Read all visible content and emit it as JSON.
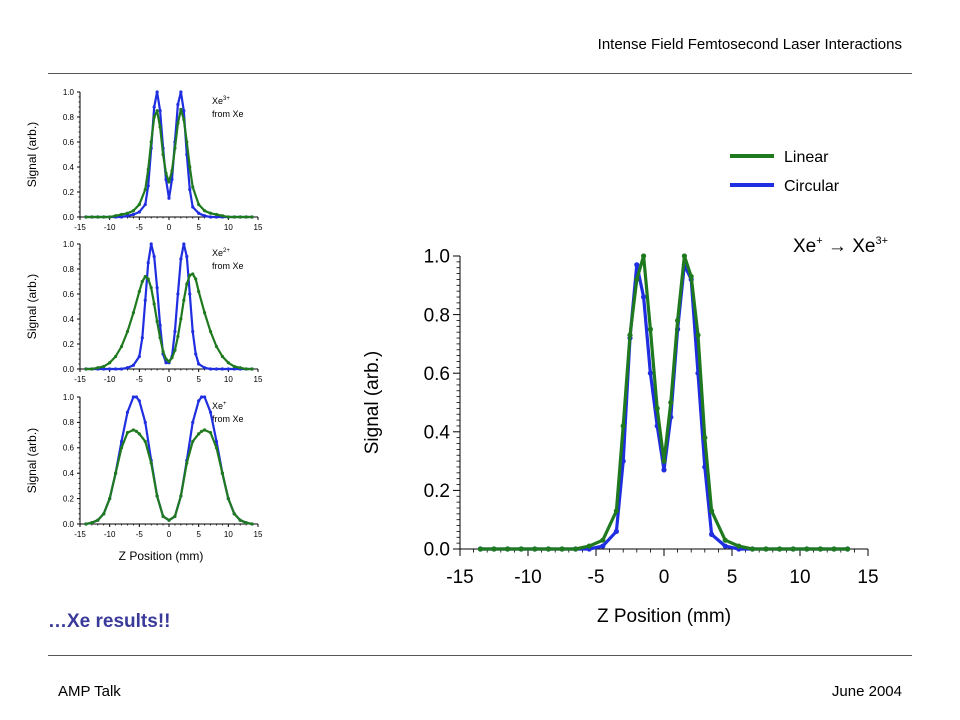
{
  "header": {
    "title": "Intense Field Femtosecond Laser Interactions"
  },
  "footer": {
    "left": "AMP Talk",
    "right": "June 2004"
  },
  "tagline": "…Xe results!!",
  "colors": {
    "linear": "#1f7a1f",
    "circular": "#1f2ee0"
  },
  "chart_data": [
    {
      "id": "main",
      "type": "line",
      "title_base": "Xe",
      "title_sup1": "+",
      "title_arrow": " → Xe",
      "title_sup2": "3+",
      "xlabel": "Z Position (mm)",
      "ylabel": "Signal (arb.)",
      "xlim": [
        -15,
        15
      ],
      "ylim": [
        0,
        1.0
      ],
      "xticks": [
        -15,
        -10,
        -5,
        0,
        5,
        10,
        15
      ],
      "yticks": [
        "0.0",
        "0.2",
        "0.4",
        "0.6",
        "0.8",
        "1.0"
      ],
      "legend": {
        "placement": "top-right",
        "entries": [
          "Linear",
          "Circular"
        ]
      },
      "x": [
        -13.5,
        -12.5,
        -11.5,
        -10.5,
        -9.5,
        -8.5,
        -7.5,
        -6.5,
        -5.5,
        -4.5,
        -3.5,
        -3,
        -2.5,
        -2,
        -1.5,
        -1,
        -0.5,
        0,
        0.5,
        1,
        1.5,
        2,
        2.5,
        3,
        3.5,
        4.5,
        5.5,
        6.5,
        7.5,
        8.5,
        9.5,
        10.5,
        11.5,
        12.5,
        13.5
      ],
      "series": [
        {
          "name": "Circular",
          "values": [
            0,
            0,
            0,
            0,
            0,
            0,
            0,
            0,
            0,
            0.01,
            0.06,
            0.3,
            0.72,
            0.97,
            0.86,
            0.6,
            0.42,
            0.27,
            0.45,
            0.75,
            0.97,
            0.92,
            0.6,
            0.28,
            0.05,
            0.01,
            0,
            0,
            0,
            0,
            0,
            0,
            0,
            0,
            0
          ]
        },
        {
          "name": "Linear",
          "values": [
            0,
            0,
            0,
            0,
            0,
            0,
            0,
            0,
            0.01,
            0.03,
            0.13,
            0.42,
            0.73,
            0.92,
            1.0,
            0.75,
            0.48,
            0.3,
            0.5,
            0.78,
            1.0,
            0.93,
            0.73,
            0.38,
            0.13,
            0.03,
            0.01,
            0,
            0,
            0,
            0,
            0,
            0,
            0,
            0
          ]
        }
      ]
    },
    {
      "id": "small1",
      "type": "line",
      "annotation_base": "Xe",
      "annotation_sup": "3+",
      "annotation_line2": "from Xe",
      "ylabel": "Signal (arb.)",
      "xlim": [
        -15,
        15
      ],
      "ylim": [
        0,
        1.0
      ],
      "xticks": [
        -15,
        -10,
        -5,
        0,
        5,
        10,
        15
      ],
      "yticks": [
        "0.0",
        "0.2",
        "0.4",
        "0.6",
        "0.8",
        "1.0"
      ],
      "x": [
        -14,
        -13,
        -12,
        -11,
        -10,
        -9,
        -8,
        -7,
        -6,
        -5,
        -4,
        -3.5,
        -3,
        -2.5,
        -2,
        -1.5,
        -1,
        -0.5,
        0,
        0.5,
        1,
        1.5,
        2,
        2.5,
        3,
        3.5,
        4,
        5,
        6,
        7,
        8,
        9,
        10,
        11,
        12,
        13,
        14
      ],
      "series": [
        {
          "name": "Circular",
          "values": [
            0,
            0,
            0,
            0,
            0,
            0,
            0,
            0.01,
            0.02,
            0.04,
            0.1,
            0.25,
            0.55,
            0.88,
            1.0,
            0.85,
            0.55,
            0.3,
            0.15,
            0.3,
            0.6,
            0.9,
            1.0,
            0.85,
            0.5,
            0.22,
            0.08,
            0.03,
            0.01,
            0,
            0,
            0,
            0,
            0,
            0,
            0,
            0
          ]
        },
        {
          "name": "Linear",
          "values": [
            0,
            0,
            0,
            0,
            0,
            0.01,
            0.02,
            0.03,
            0.05,
            0.1,
            0.22,
            0.38,
            0.6,
            0.8,
            0.85,
            0.72,
            0.5,
            0.35,
            0.28,
            0.37,
            0.55,
            0.75,
            0.86,
            0.78,
            0.6,
            0.4,
            0.24,
            0.1,
            0.05,
            0.03,
            0.02,
            0.01,
            0,
            0,
            0,
            0,
            0
          ]
        }
      ]
    },
    {
      "id": "small2",
      "type": "line",
      "annotation_base": "Xe",
      "annotation_sup": "2+",
      "annotation_line2": "from Xe",
      "ylabel": "Signal (arb.)",
      "xlim": [
        -15,
        15
      ],
      "ylim": [
        0,
        1.0
      ],
      "xticks": [
        -15,
        -10,
        -5,
        0,
        5,
        10,
        15
      ],
      "yticks": [
        "0.0",
        "0.2",
        "0.4",
        "0.6",
        "0.8",
        "1.0"
      ],
      "x": [
        -14,
        -13,
        -12,
        -11,
        -10,
        -9,
        -8,
        -7,
        -6,
        -5,
        -4.5,
        -4,
        -3.5,
        -3,
        -2.5,
        -2,
        -1.5,
        -1,
        -0.5,
        0,
        0.5,
        1,
        1.5,
        2,
        2.5,
        3,
        3.5,
        4,
        4.5,
        5,
        6,
        7,
        8,
        9,
        10,
        11,
        12,
        13,
        14
      ],
      "series": [
        {
          "name": "Circular",
          "values": [
            0,
            0,
            0,
            0,
            0,
            0,
            0,
            0.01,
            0.03,
            0.1,
            0.25,
            0.55,
            0.85,
            1.0,
            0.9,
            0.65,
            0.35,
            0.12,
            0.05,
            0.05,
            0.1,
            0.3,
            0.6,
            0.88,
            1.0,
            0.9,
            0.6,
            0.3,
            0.12,
            0.04,
            0.01,
            0,
            0,
            0,
            0,
            0,
            0,
            0,
            0
          ]
        },
        {
          "name": "Linear",
          "values": [
            0,
            0,
            0.01,
            0.02,
            0.05,
            0.1,
            0.18,
            0.3,
            0.45,
            0.62,
            0.7,
            0.74,
            0.72,
            0.65,
            0.52,
            0.38,
            0.25,
            0.14,
            0.08,
            0.06,
            0.09,
            0.15,
            0.26,
            0.4,
            0.55,
            0.68,
            0.75,
            0.76,
            0.72,
            0.62,
            0.45,
            0.3,
            0.18,
            0.1,
            0.05,
            0.02,
            0.01,
            0,
            0
          ]
        }
      ]
    },
    {
      "id": "small3",
      "type": "line",
      "annotation_base": "Xe",
      "annotation_sup": "+",
      "annotation_line2": "from Xe",
      "xlabel": "Z Position (mm)",
      "ylabel": "Signal (arb.)",
      "xlim": [
        -15,
        15
      ],
      "ylim": [
        0,
        1.0
      ],
      "xticks": [
        -15,
        -10,
        -5,
        0,
        5,
        10,
        15
      ],
      "yticks": [
        "0.0",
        "0.2",
        "0.4",
        "0.6",
        "0.8",
        "1.0"
      ],
      "x": [
        -14,
        -13,
        -12,
        -11,
        -10,
        -9,
        -8,
        -7,
        -6,
        -5.5,
        -5,
        -4,
        -3,
        -2,
        -1,
        0,
        1,
        2,
        3,
        4,
        5,
        5.5,
        6,
        7,
        8,
        9,
        10,
        11,
        12,
        13,
        14
      ],
      "series": [
        {
          "name": "Circular",
          "values": [
            0,
            0.01,
            0.03,
            0.08,
            0.2,
            0.4,
            0.65,
            0.88,
            1.0,
            1.0,
            0.97,
            0.8,
            0.5,
            0.22,
            0.06,
            0.03,
            0.06,
            0.22,
            0.5,
            0.8,
            0.97,
            1.0,
            1.0,
            0.88,
            0.65,
            0.4,
            0.2,
            0.08,
            0.03,
            0.01,
            0
          ]
        },
        {
          "name": "Linear",
          "values": [
            0,
            0.01,
            0.03,
            0.08,
            0.2,
            0.4,
            0.6,
            0.72,
            0.74,
            0.73,
            0.71,
            0.65,
            0.48,
            0.22,
            0.06,
            0.03,
            0.06,
            0.22,
            0.48,
            0.65,
            0.71,
            0.73,
            0.74,
            0.72,
            0.6,
            0.4,
            0.2,
            0.08,
            0.03,
            0.01,
            0
          ]
        }
      ]
    }
  ]
}
